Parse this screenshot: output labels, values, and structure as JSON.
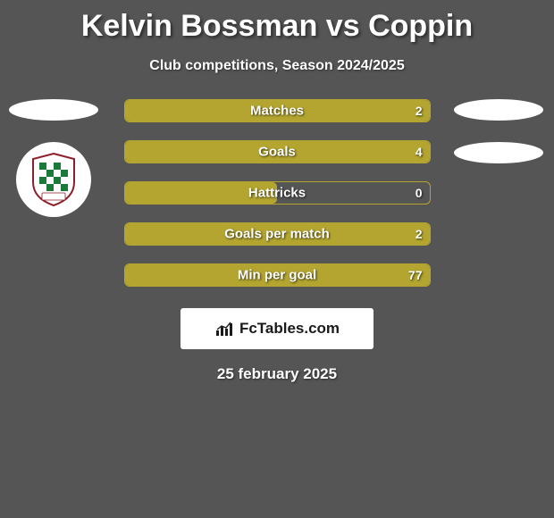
{
  "title": "Kelvin Bossman vs Coppin",
  "subtitle": "Club competitions, Season 2024/2025",
  "footer_date": "25 february 2025",
  "logo_text": "FcTables.com",
  "colors": {
    "background": "#555555",
    "bar_fill": "#b3a530",
    "bar_border": "#b3a530",
    "ellipse": "#ffffff",
    "text": "#ffffff"
  },
  "bars": [
    {
      "label": "Matches",
      "left_value": "",
      "right_value": "2",
      "fill_side": "full",
      "fill_fraction": 1.0
    },
    {
      "label": "Goals",
      "left_value": "",
      "right_value": "4",
      "fill_side": "full",
      "fill_fraction": 1.0
    },
    {
      "label": "Hattricks",
      "left_value": "",
      "right_value": "0",
      "fill_side": "left",
      "fill_fraction": 0.5
    },
    {
      "label": "Goals per match",
      "left_value": "",
      "right_value": "2",
      "fill_side": "full",
      "fill_fraction": 1.0
    },
    {
      "label": "Min per goal",
      "left_value": "",
      "right_value": "77",
      "fill_side": "full",
      "fill_fraction": 1.0
    }
  ],
  "shield": {
    "border_color": "#8c1f2a",
    "check_green": "#1a7a3a",
    "check_white": "#ffffff"
  }
}
